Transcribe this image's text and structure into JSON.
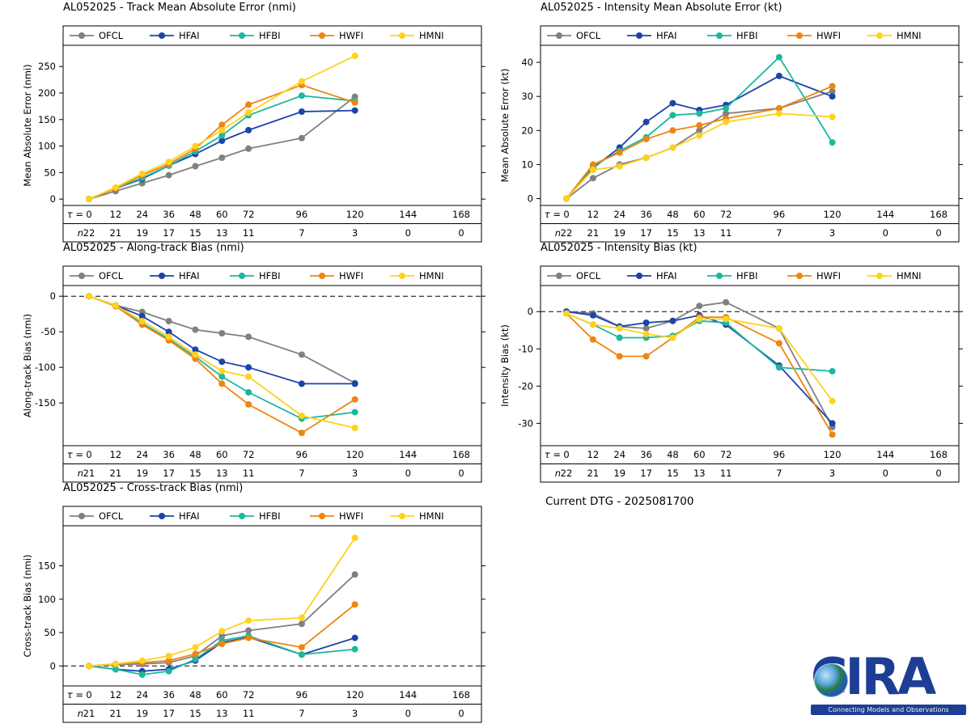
{
  "current_dtg": "Current DTG - 2025081700",
  "logo": {
    "text": "CIRA",
    "tagline": "Connecting Models and Observations",
    "color": "#1e3e96"
  },
  "taus": [
    0,
    12,
    24,
    36,
    48,
    60,
    72,
    96,
    120,
    144,
    168
  ],
  "series_colors": {
    "OFCL": "#808080",
    "HFAI": "#1c44a8",
    "HFBI": "#1db79e",
    "HWFI": "#ee8510",
    "HMNI": "#ffd21f"
  },
  "chart_data": [
    {
      "type": "line",
      "title": "AL052025 - Track Mean Absolute Error (nmi)",
      "ylabel": "Mean Absolute Error (nmi)",
      "ylim": [
        -12,
        290
      ],
      "yticks": [
        0,
        50,
        100,
        150,
        200,
        250
      ],
      "zero_line": false,
      "x_tick_prefix": "τ =",
      "n_prefix": "n",
      "n_values": [
        22,
        21,
        19,
        17,
        15,
        13,
        11,
        7,
        3,
        0,
        0
      ],
      "series": [
        {
          "name": "OFCL",
          "values": [
            0,
            15,
            30,
            45,
            62,
            78,
            95,
            115,
            193
          ]
        },
        {
          "name": "HFAI",
          "values": [
            0,
            20,
            38,
            63,
            85,
            110,
            130,
            165,
            167
          ]
        },
        {
          "name": "HFBI",
          "values": [
            0,
            20,
            40,
            63,
            90,
            120,
            158,
            195,
            185
          ]
        },
        {
          "name": "HWFI",
          "values": [
            0,
            20,
            45,
            66,
            95,
            140,
            178,
            215,
            182
          ]
        },
        {
          "name": "HMNI",
          "values": [
            0,
            22,
            48,
            70,
            100,
            130,
            163,
            222,
            270
          ]
        }
      ]
    },
    {
      "type": "line",
      "title": "AL052025 - Intensity Mean Absolute Error (kt)",
      "ylabel": "Mean Absolute Error (kt)",
      "ylim": [
        -2,
        45
      ],
      "yticks": [
        0,
        10,
        20,
        30,
        40
      ],
      "zero_line": false,
      "x_tick_prefix": "τ =",
      "n_prefix": "n",
      "n_values": [
        22,
        21,
        19,
        17,
        15,
        13,
        11,
        7,
        3,
        0,
        0
      ],
      "series": [
        {
          "name": "OFCL",
          "values": [
            0,
            6,
            10,
            12,
            15,
            20,
            25,
            26.5,
            31.5
          ]
        },
        {
          "name": "HFAI",
          "values": [
            0,
            9,
            15,
            22.5,
            28,
            26,
            27.5,
            36,
            30
          ]
        },
        {
          "name": "HFBI",
          "values": [
            0,
            9.5,
            14,
            18,
            24.5,
            25,
            26.5,
            41.5,
            16.5
          ]
        },
        {
          "name": "HWFI",
          "values": [
            0,
            10,
            13.5,
            17.5,
            20,
            21.5,
            23.5,
            26.5,
            33
          ]
        },
        {
          "name": "HMNI",
          "values": [
            0,
            8.5,
            9.5,
            12,
            15,
            18.5,
            22.5,
            25,
            24
          ]
        }
      ]
    },
    {
      "type": "line",
      "title": "AL052025 - Along-track Bias (nmi)",
      "ylabel": "Along-track Bias (nmi)",
      "ylim": [
        -210,
        15
      ],
      "yticks": [
        0,
        -50,
        -100,
        -150
      ],
      "zero_line": true,
      "x_tick_prefix": "τ =",
      "n_prefix": "n",
      "n_values": [
        21,
        21,
        19,
        17,
        15,
        13,
        11,
        7,
        3,
        0,
        0
      ],
      "series": [
        {
          "name": "OFCL",
          "values": [
            0,
            -13,
            -22,
            -35,
            -47,
            -52,
            -57,
            -82,
            -122
          ]
        },
        {
          "name": "HFAI",
          "values": [
            0,
            -13,
            -28,
            -50,
            -75,
            -92,
            -100,
            -123,
            -123
          ]
        },
        {
          "name": "HFBI",
          "values": [
            0,
            -14,
            -38,
            -60,
            -85,
            -113,
            -135,
            -172,
            -163
          ]
        },
        {
          "name": "HWFI",
          "values": [
            0,
            -14,
            -40,
            -62,
            -88,
            -123,
            -152,
            -192,
            -145
          ]
        },
        {
          "name": "HMNI",
          "values": [
            0,
            -13,
            -35,
            -57,
            -82,
            -105,
            -113,
            -168,
            -185
          ]
        }
      ]
    },
    {
      "type": "line",
      "title": "AL052025 - Intensity Bias (kt)",
      "ylabel": "Intensity Bias (kt)",
      "ylim": [
        -36,
        7
      ],
      "yticks": [
        0,
        -10,
        -20,
        -30
      ],
      "zero_line": true,
      "x_tick_prefix": "τ =",
      "n_prefix": "n",
      "n_values": [
        22,
        21,
        19,
        17,
        15,
        13,
        11,
        7,
        3,
        0,
        0
      ],
      "series": [
        {
          "name": "OFCL",
          "values": [
            0,
            -0.5,
            -4,
            -4.5,
            -2.5,
            1.5,
            2.5,
            -4.5,
            -31
          ]
        },
        {
          "name": "HFAI",
          "values": [
            0,
            -1,
            -4,
            -3,
            -2.5,
            -1,
            -3.5,
            -14.5,
            -30
          ]
        },
        {
          "name": "HFBI",
          "values": [
            -0.5,
            -3.5,
            -7,
            -7,
            -6.5,
            -2.5,
            -3,
            -15,
            -16
          ]
        },
        {
          "name": "HWFI",
          "values": [
            -0.5,
            -7.5,
            -12,
            -12,
            -7,
            -1.5,
            -1.5,
            -8.5,
            -33
          ]
        },
        {
          "name": "HMNI",
          "values": [
            -0.5,
            -3.5,
            -4.5,
            -6,
            -7,
            -2,
            -2,
            -4.5,
            -24
          ]
        }
      ]
    },
    {
      "type": "line",
      "title": "AL052025 - Cross-track Bias (nmi)",
      "ylabel": "Cross-track Bias (nmi)",
      "ylim": [
        -30,
        210
      ],
      "yticks": [
        0,
        50,
        100,
        150
      ],
      "zero_line": true,
      "x_tick_prefix": "τ =",
      "n_prefix": "n",
      "n_values": [
        21,
        21,
        19,
        17,
        15,
        13,
        11,
        7,
        3,
        0,
        0
      ],
      "series": [
        {
          "name": "OFCL",
          "values": [
            0,
            2,
            3,
            5,
            15,
            45,
            53,
            63,
            137
          ]
        },
        {
          "name": "HFAI",
          "values": [
            0,
            -5,
            -8,
            -5,
            8,
            35,
            43,
            17,
            42
          ]
        },
        {
          "name": "HFBI",
          "values": [
            0,
            -5,
            -13,
            -8,
            10,
            38,
            45,
            17,
            25
          ]
        },
        {
          "name": "HWFI",
          "values": [
            0,
            3,
            5,
            8,
            18,
            33,
            42,
            28,
            92
          ]
        },
        {
          "name": "HMNI",
          "values": [
            0,
            3,
            8,
            15,
            28,
            52,
            68,
            72,
            192
          ]
        }
      ]
    }
  ]
}
